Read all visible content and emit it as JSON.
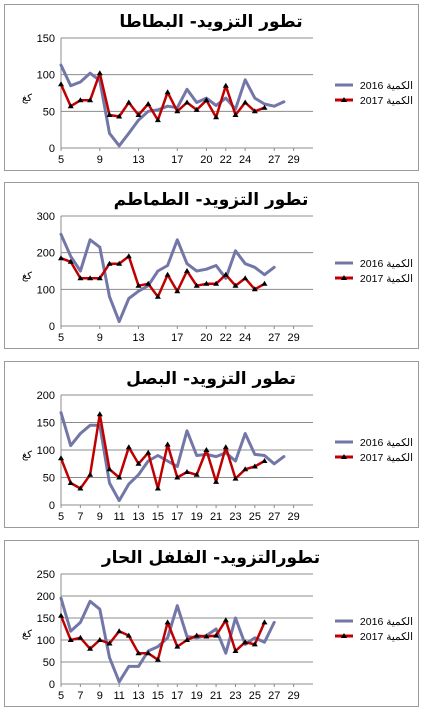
{
  "chart_data": [
    {
      "type": "line",
      "title": "تطور التزويد- البطاطا",
      "ylabel": "كغ",
      "ylim": [
        0,
        150
      ],
      "yticks": [
        0,
        50,
        100,
        150
      ],
      "x": [
        5,
        6,
        7,
        8,
        9,
        10,
        11,
        12,
        13,
        14,
        15,
        16,
        17,
        18,
        19,
        20,
        21,
        22,
        23,
        24,
        25,
        26,
        27,
        28,
        29,
        30,
        31
      ],
      "xticks": [
        5,
        9,
        13,
        17,
        20,
        22,
        24,
        27,
        29
      ],
      "series": [
        {
          "name": "2016 الكمية",
          "color": "#7377A8",
          "marker": false,
          "values": [
            113,
            85,
            90,
            102,
            92,
            20,
            3,
            20,
            38,
            50,
            52,
            57,
            55,
            80,
            62,
            68,
            58,
            68,
            53,
            93,
            68,
            60,
            57,
            63,
            null,
            null,
            null
          ]
        },
        {
          "name": "2017 الكمية",
          "color": "#C00000",
          "marker": true,
          "values": [
            87,
            57,
            65,
            65,
            102,
            45,
            43,
            62,
            45,
            60,
            38,
            76,
            50,
            62,
            52,
            65,
            42,
            85,
            45,
            62,
            50,
            55,
            null,
            null,
            null,
            null,
            null
          ]
        }
      ]
    },
    {
      "type": "line",
      "title": "تطور التزويد- الطماطم",
      "ylabel": "كغ",
      "ylim": [
        0,
        300
      ],
      "yticks": [
        0,
        100,
        200,
        300
      ],
      "x": [
        5,
        6,
        7,
        8,
        9,
        10,
        11,
        12,
        13,
        14,
        15,
        16,
        17,
        18,
        19,
        20,
        21,
        22,
        23,
        24,
        25,
        26,
        27,
        28,
        29,
        30,
        31
      ],
      "xticks": [
        5,
        9,
        13,
        17,
        20,
        22,
        24,
        27,
        29
      ],
      "series": [
        {
          "name": "2016 الكمية",
          "color": "#7377A8",
          "marker": false,
          "values": [
            250,
            190,
            150,
            235,
            215,
            80,
            12,
            75,
            95,
            110,
            150,
            165,
            235,
            170,
            150,
            155,
            165,
            130,
            205,
            170,
            160,
            140,
            160,
            null,
            null,
            null,
            null
          ]
        },
        {
          "name": "2017 الكمية",
          "color": "#C00000",
          "marker": true,
          "values": [
            185,
            175,
            130,
            130,
            130,
            170,
            170,
            190,
            110,
            115,
            80,
            140,
            95,
            150,
            110,
            115,
            115,
            140,
            110,
            130,
            100,
            115,
            null,
            null,
            null,
            null,
            null
          ]
        }
      ]
    },
    {
      "type": "line",
      "title": "تطور التزويد- البصل",
      "ylabel": "كغ",
      "ylim": [
        0,
        200
      ],
      "yticks": [
        0,
        50,
        100,
        150,
        200
      ],
      "x": [
        5,
        6,
        7,
        8,
        9,
        10,
        11,
        12,
        13,
        14,
        15,
        16,
        17,
        18,
        19,
        20,
        21,
        22,
        23,
        24,
        25,
        26,
        27,
        28,
        29,
        30,
        31
      ],
      "xticks": [
        5,
        7,
        9,
        11,
        13,
        15,
        17,
        19,
        21,
        23,
        25,
        27,
        29
      ],
      "series": [
        {
          "name": "2016 الكمية",
          "color": "#7377A8",
          "marker": false,
          "values": [
            168,
            108,
            130,
            145,
            145,
            40,
            8,
            38,
            55,
            80,
            90,
            80,
            70,
            135,
            90,
            92,
            88,
            95,
            80,
            130,
            92,
            90,
            75,
            88,
            null,
            null,
            null
          ]
        },
        {
          "name": "2017 الكمية",
          "color": "#C00000",
          "marker": true,
          "values": [
            85,
            40,
            30,
            55,
            165,
            65,
            50,
            105,
            75,
            95,
            30,
            110,
            50,
            60,
            55,
            100,
            42,
            105,
            48,
            65,
            70,
            80,
            null,
            null,
            null,
            null,
            null
          ]
        }
      ]
    },
    {
      "type": "line",
      "title": "تطورالتزويد- الفلفل الحار",
      "ylabel": "كغ",
      "ylim": [
        0,
        250
      ],
      "yticks": [
        0,
        50,
        100,
        150,
        200,
        250
      ],
      "x": [
        5,
        6,
        7,
        8,
        9,
        10,
        11,
        12,
        13,
        14,
        15,
        16,
        17,
        18,
        19,
        20,
        21,
        22,
        23,
        24,
        25,
        26,
        27,
        28,
        29,
        30,
        31
      ],
      "xticks": [
        5,
        7,
        9,
        11,
        13,
        15,
        17,
        19,
        21,
        23,
        25,
        27,
        29
      ],
      "series": [
        {
          "name": "2016 الكمية",
          "color": "#7377A8",
          "marker": false,
          "values": [
            195,
            120,
            140,
            188,
            170,
            60,
            5,
            40,
            40,
            75,
            85,
            105,
            178,
            108,
            105,
            110,
            125,
            70,
            150,
            90,
            105,
            95,
            140,
            null,
            null,
            null,
            null
          ]
        },
        {
          "name": "2017 الكمية",
          "color": "#C00000",
          "marker": true,
          "values": [
            155,
            100,
            105,
            80,
            100,
            92,
            120,
            110,
            70,
            70,
            55,
            140,
            85,
            100,
            110,
            108,
            110,
            145,
            75,
            95,
            90,
            140,
            null,
            null,
            null,
            null,
            null
          ]
        }
      ]
    }
  ]
}
